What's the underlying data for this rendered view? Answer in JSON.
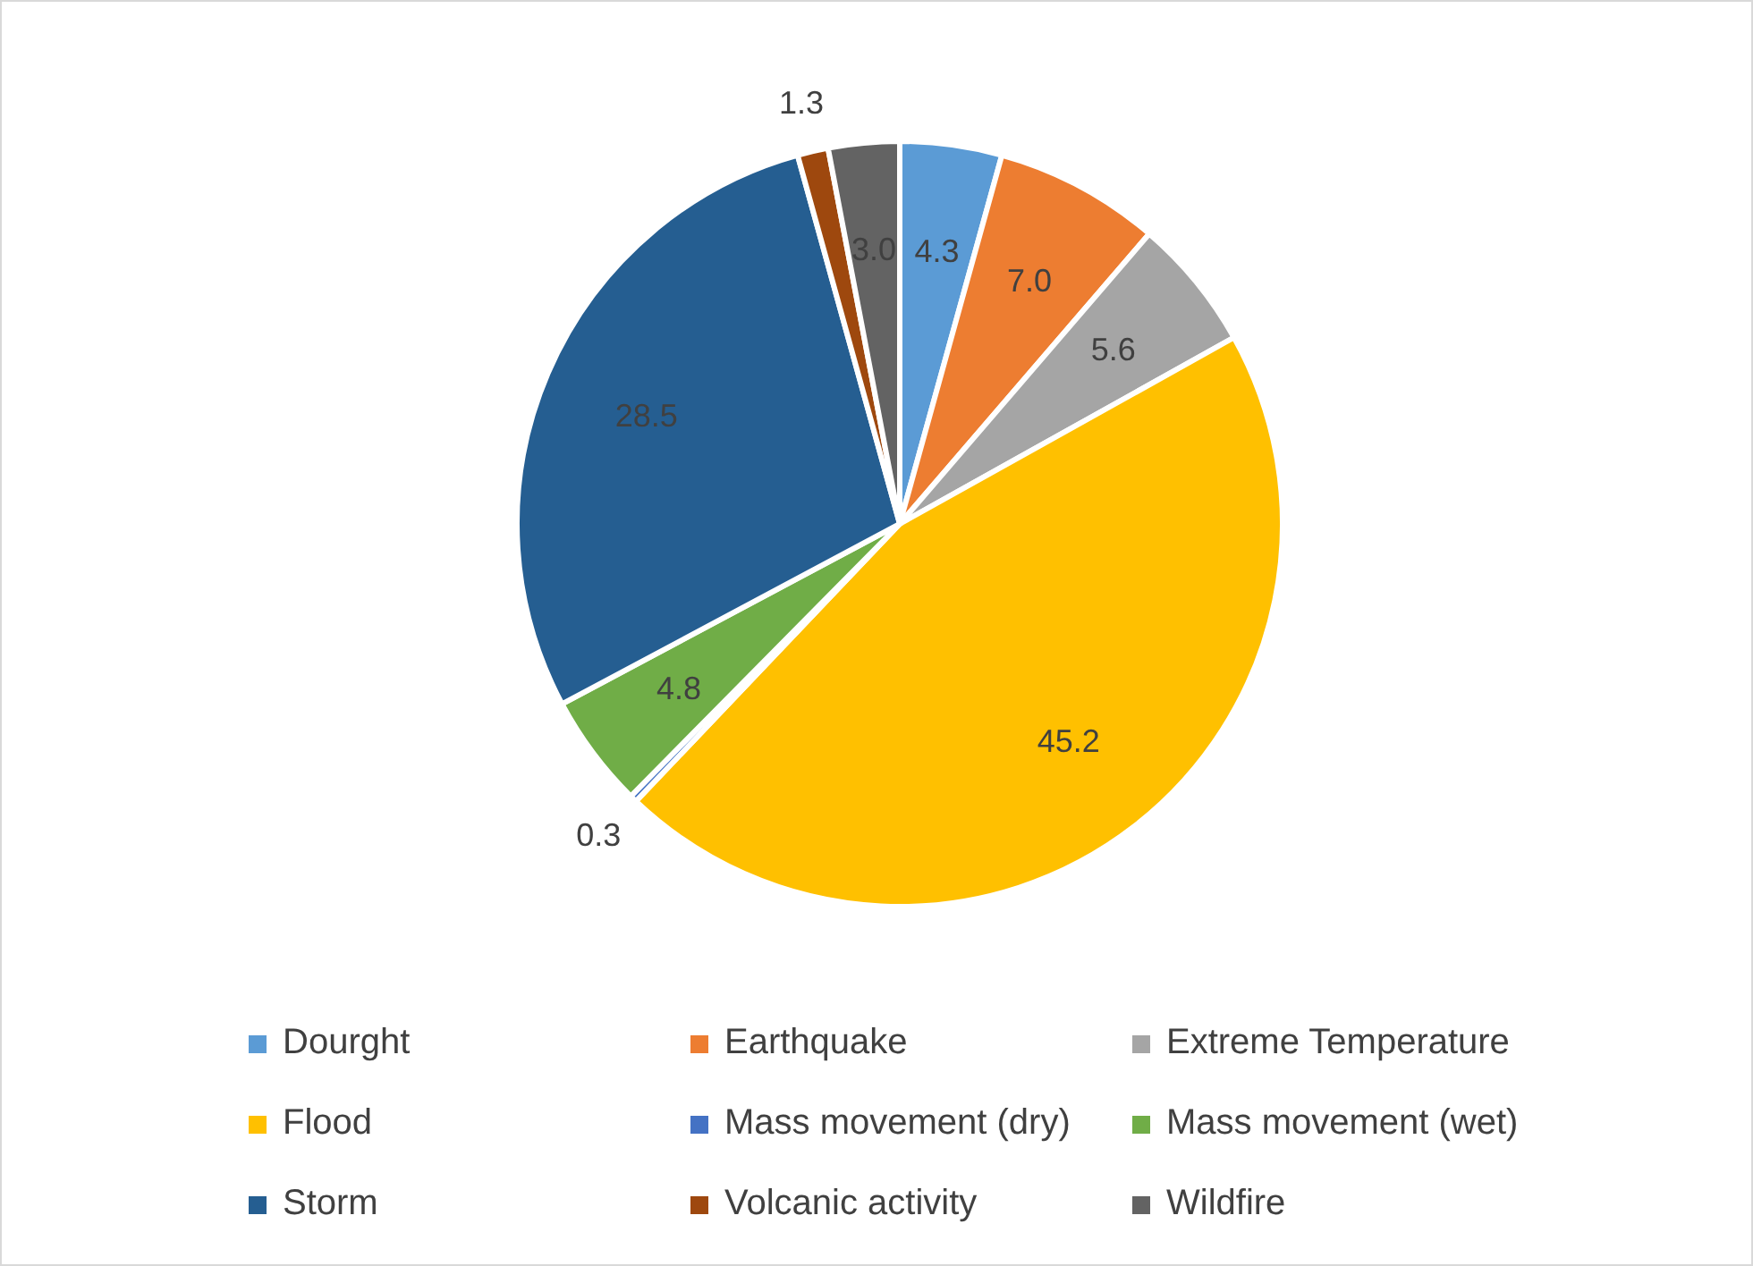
{
  "chart_data": {
    "type": "pie",
    "categories": [
      "Dourght",
      "Earthquake",
      "Extreme Temperature",
      "Flood",
      "Mass movement (dry)",
      "Mass movement (wet)",
      "Storm",
      "Volcanic activity",
      "Wildfire"
    ],
    "values": [
      4.3,
      7.0,
      5.6,
      45.2,
      0.3,
      4.8,
      28.5,
      1.3,
      3.0
    ],
    "value_labels": [
      "4.3",
      "7.0",
      "5.6",
      "45.2",
      "0.3",
      "4.8",
      "28.5",
      "1.3",
      "3.0"
    ],
    "colors": [
      "#5b9bd5",
      "#ed7d31",
      "#a5a5a5",
      "#ffc000",
      "#4472c4",
      "#70ad47",
      "#255e91",
      "#9e480e",
      "#636363"
    ],
    "legend": "bottom"
  }
}
